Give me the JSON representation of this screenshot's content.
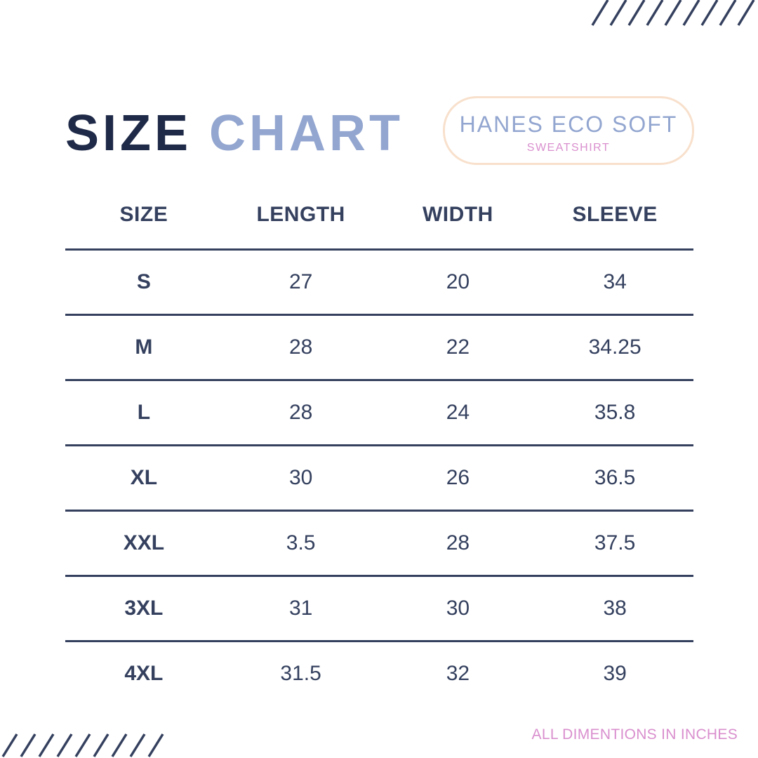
{
  "title": {
    "word1": "SIZE",
    "word2": "CHART"
  },
  "badge": {
    "title": "HANES ECO SOFT",
    "subtitle": "SWEATSHIRT"
  },
  "table": {
    "headers": [
      "SIZE",
      "LENGTH",
      "WIDTH",
      "SLEEVE"
    ],
    "rows": [
      [
        "S",
        "27",
        "20",
        "34"
      ],
      [
        "M",
        "28",
        "22",
        "34.25"
      ],
      [
        "L",
        "28",
        "24",
        "35.8"
      ],
      [
        "XL",
        "30",
        "26",
        "36.5"
      ],
      [
        "XXL",
        "3.5",
        "28",
        "37.5"
      ],
      [
        "3XL",
        "31",
        "30",
        "38"
      ],
      [
        "4XL",
        "31.5",
        "32",
        "39"
      ]
    ]
  },
  "footnote": "ALL DIMENTIONS IN INCHES",
  "colors": {
    "navy": "#1f2a48",
    "text": "#34405e",
    "accent_blue": "#93a6d0",
    "accent_pink": "#d98fce",
    "badge_border": "#f8e0cc"
  }
}
